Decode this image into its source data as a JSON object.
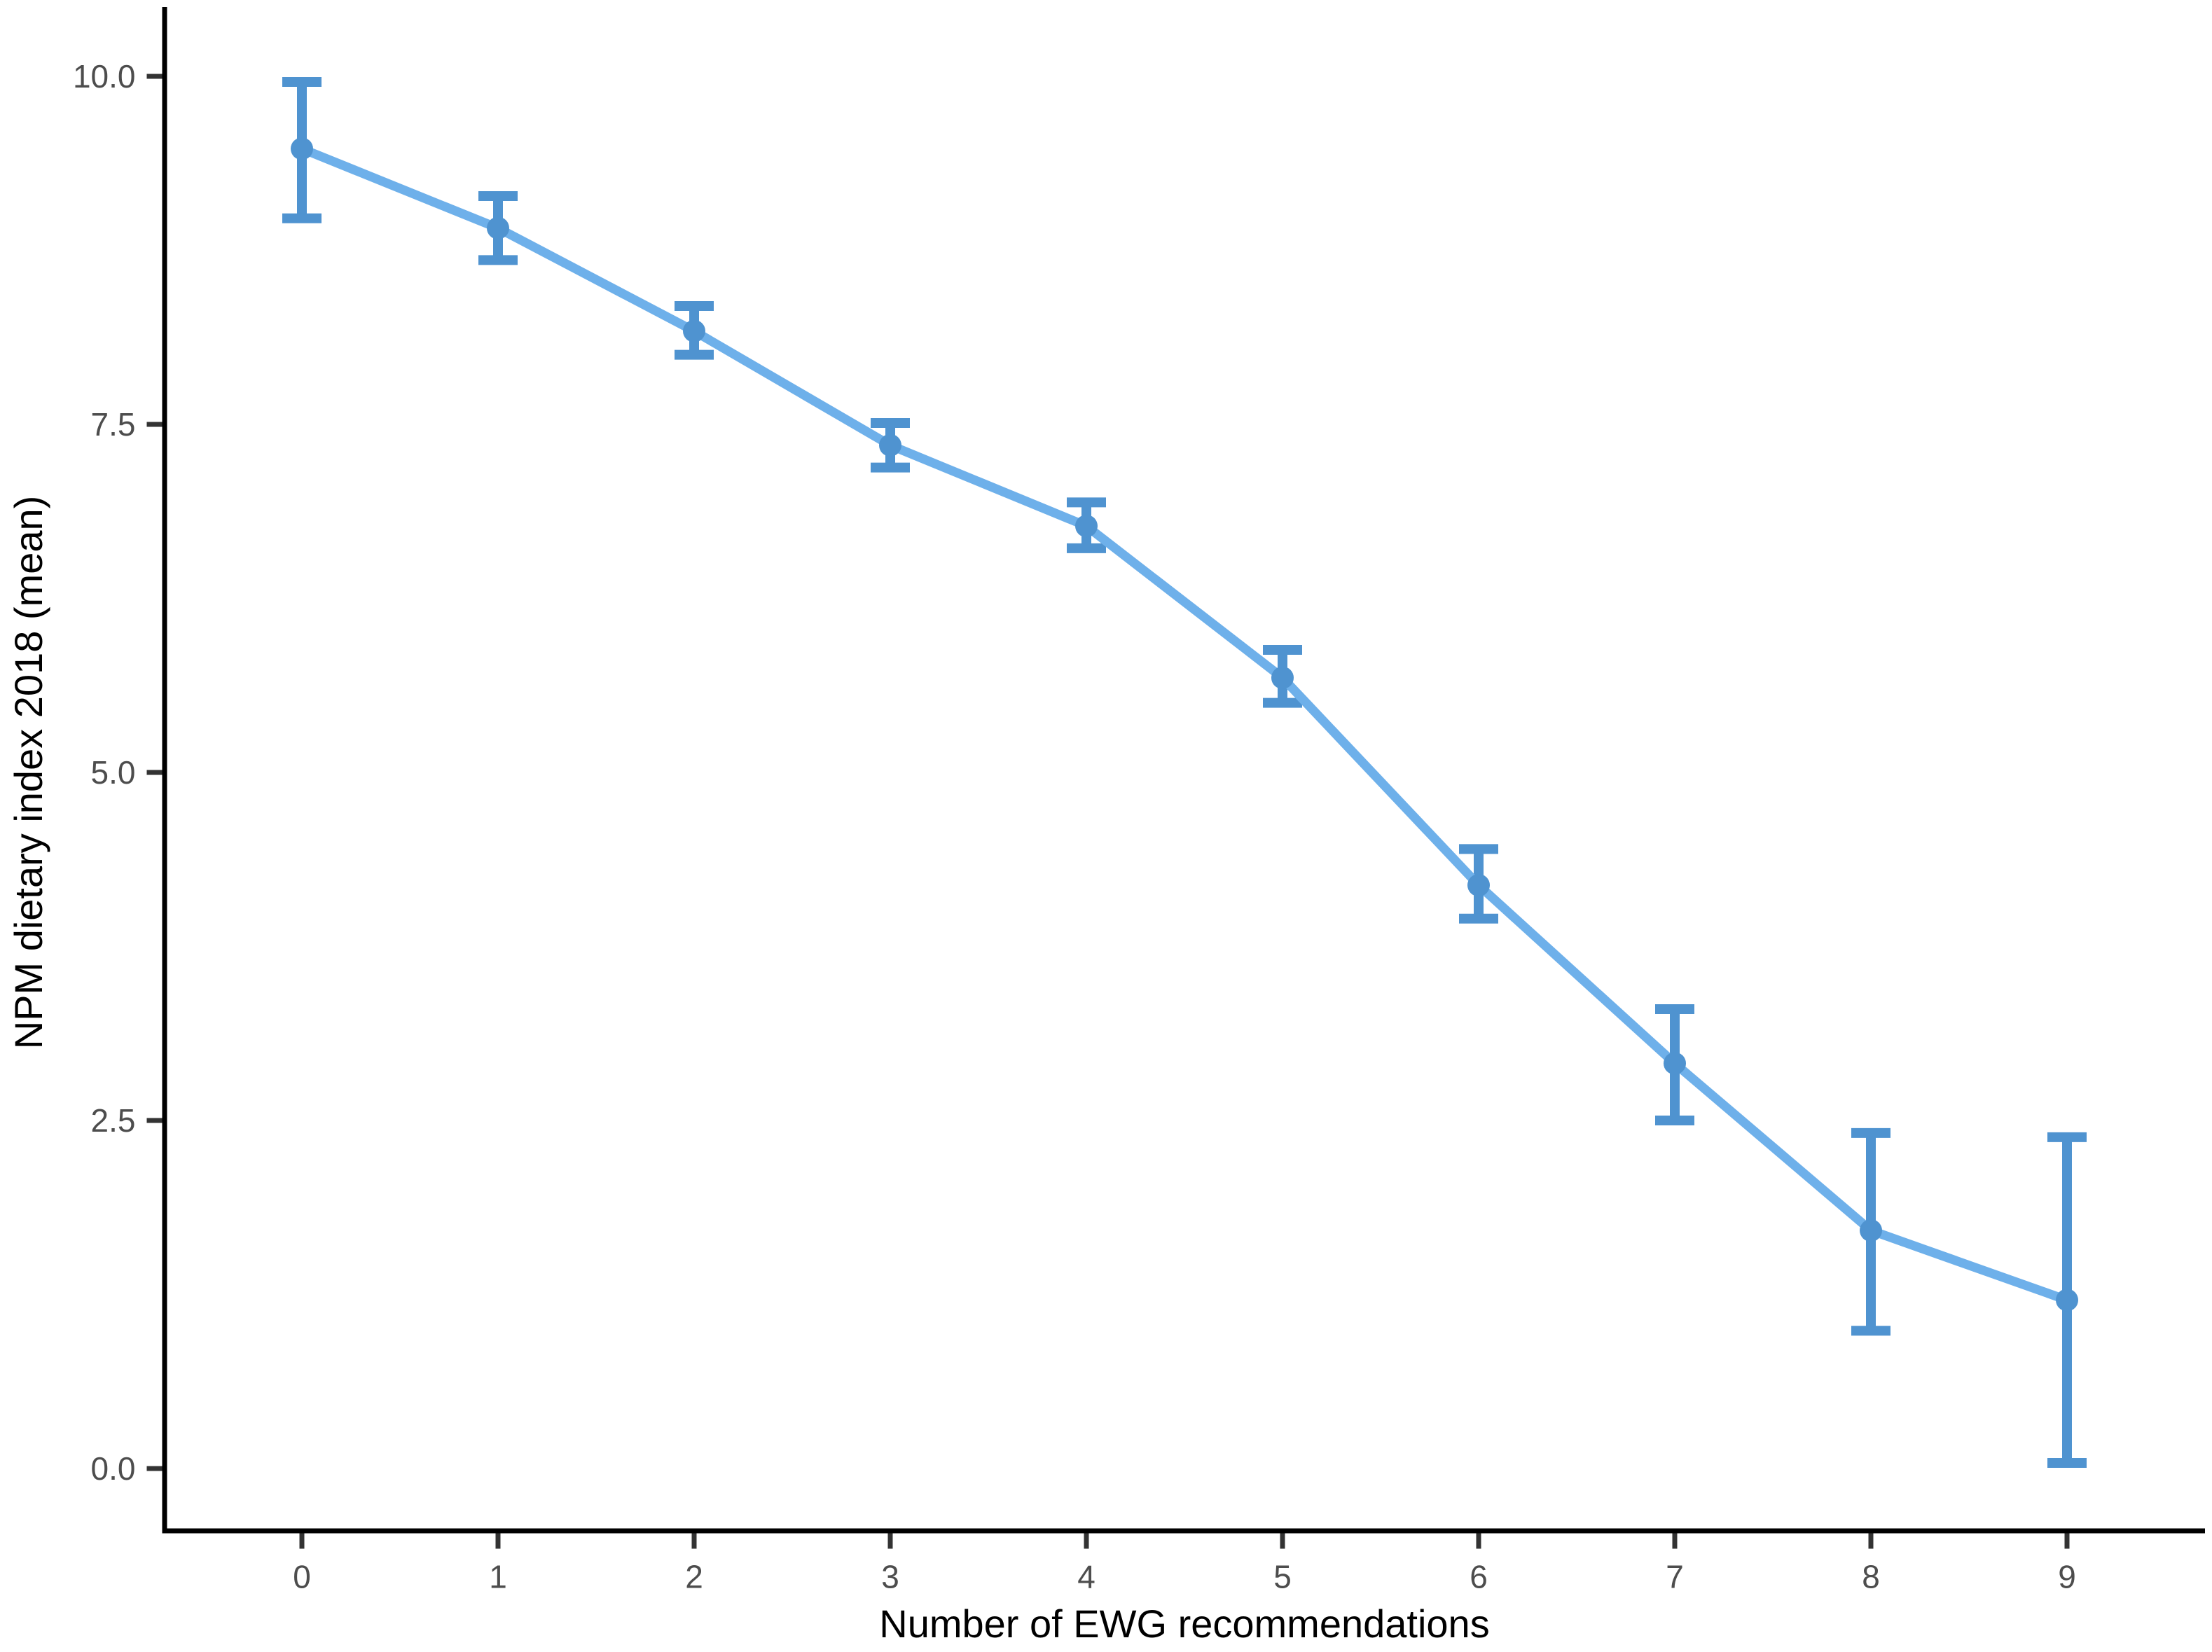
{
  "chart_data": {
    "type": "line",
    "title": "",
    "xlabel": "Number of EWG recommendations",
    "ylabel": "NPM dietary index 2018 (mean)",
    "categories": [
      "0",
      "1",
      "2",
      "3",
      "4",
      "5",
      "6",
      "7",
      "8",
      "9"
    ],
    "series": [
      {
        "name": "NPM dietary index 2018 (mean) with confidence interval",
        "values": [
          9.48,
          8.91,
          8.17,
          7.35,
          6.77,
          5.68,
          4.19,
          2.91,
          1.71,
          1.21
        ],
        "ci_low": [
          8.98,
          8.68,
          8.0,
          7.19,
          6.61,
          5.5,
          3.95,
          2.5,
          0.99,
          0.04
        ],
        "ci_high": [
          9.96,
          9.14,
          8.35,
          7.51,
          6.94,
          5.88,
          4.45,
          3.3,
          2.41,
          2.38
        ]
      }
    ],
    "ylim": [
      0,
      10
    ],
    "yticks": [
      0.0,
      2.5,
      5.0,
      7.5,
      10.0
    ],
    "ytick_labels": [
      "0.0",
      "2.5",
      "5.0",
      "7.5",
      "10.0"
    ],
    "grid": false,
    "legend": "none",
    "background": "#FFFFFF",
    "colors": {
      "line": "#6EB0EA",
      "error_bar": "#4F93D0",
      "point": "#4F93D0",
      "axis": "#000000",
      "tick": "#333333",
      "tick_label": "#4D4D4D",
      "axis_title": "#000000"
    }
  }
}
